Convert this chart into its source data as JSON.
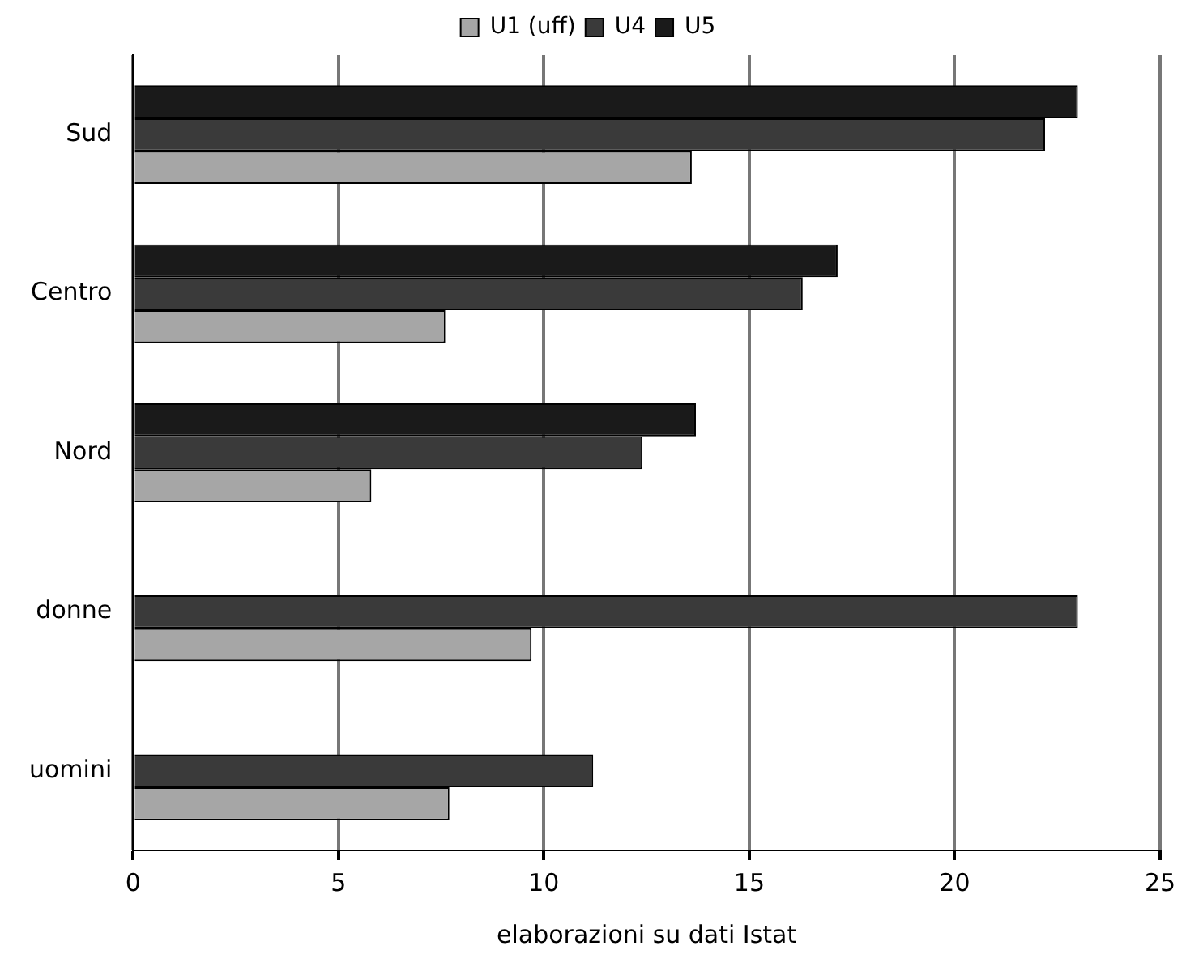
{
  "chart_data": {
    "type": "bar",
    "orientation": "horizontal",
    "categories": [
      "Sud",
      "Centro",
      "Nord",
      "donne",
      "uomini"
    ],
    "series": [
      {
        "name": "U1 (uff)",
        "color": "#a6a6a6",
        "values": [
          13.6,
          7.6,
          5.8,
          9.7,
          7.7
        ]
      },
      {
        "name": "U4",
        "color": "#3a3a3a",
        "values": [
          22.2,
          16.3,
          12.4,
          23.0,
          11.2
        ]
      },
      {
        "name": "U5",
        "color": "#1a1a1a",
        "values": [
          23.0,
          17.15,
          13.7,
          null,
          null
        ]
      }
    ],
    "xlim": [
      0,
      25
    ],
    "xticks": [
      0,
      5,
      10,
      15,
      20,
      25
    ],
    "xlabel": "elaborazioni su dati Istat",
    "grid": "x",
    "legend": "top"
  }
}
